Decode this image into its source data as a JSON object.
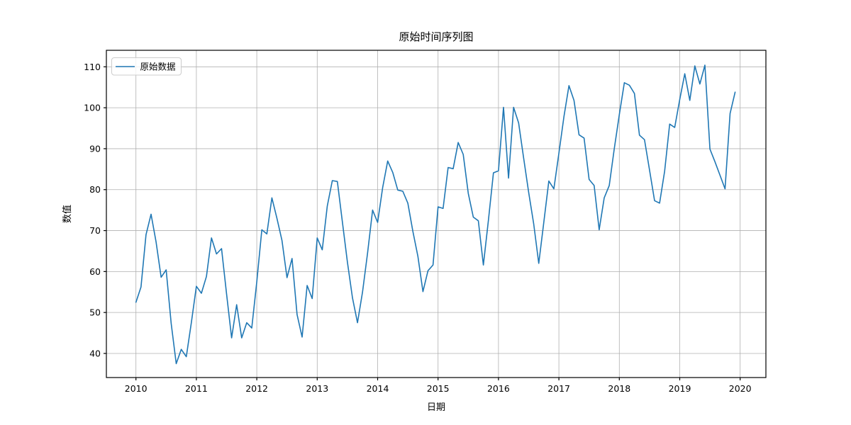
{
  "chart_data": {
    "type": "line",
    "title": "原始时间序列图",
    "xlabel": "日期",
    "ylabel": "数值",
    "x_start": "2010-01",
    "x_frequency": "monthly",
    "n_points": 120,
    "series": [
      {
        "name": "原始数据",
        "color": "#1f77b4",
        "values": [
          52.5,
          56.2,
          69.0,
          74.0,
          67.2,
          58.6,
          60.4,
          47.3,
          37.5,
          41.0,
          39.2,
          47.5,
          56.4,
          54.7,
          58.8,
          68.2,
          64.3,
          65.6,
          54.5,
          43.8,
          51.9,
          43.8,
          47.5,
          46.2,
          57.5,
          70.2,
          69.2,
          78.0,
          73.0,
          67.6,
          58.5,
          63.2,
          49.5,
          44.0,
          56.6,
          53.4,
          68.2,
          65.3,
          76.0,
          82.2,
          82.0,
          72.1,
          62.3,
          53.6,
          47.5,
          55.0,
          64.5,
          75.0,
          72.0,
          80.5,
          87.0,
          84.2,
          79.9,
          79.6,
          76.7,
          69.8,
          63.7,
          55.1,
          60.2,
          61.6,
          75.8,
          75.4,
          85.4,
          85.1,
          91.5,
          88.6,
          79.1,
          73.3,
          72.4,
          61.6,
          72.5,
          84.1,
          84.6,
          100.1,
          82.8,
          100.1,
          96.3,
          87.7,
          79.3,
          71.6,
          62.0,
          72.0,
          82.1,
          80.2,
          88.9,
          97.8,
          105.4,
          101.8,
          93.4,
          92.6,
          82.5,
          81.0,
          70.2,
          78.0,
          81.0,
          90.0,
          98.3,
          106.1,
          105.5,
          103.5,
          93.3,
          92.2,
          84.8,
          77.3,
          76.7,
          84.5,
          96.0,
          95.2,
          102.0,
          108.3,
          101.8,
          110.2,
          105.8,
          110.4,
          89.9,
          86.8,
          83.5,
          80.2,
          98.6,
          103.8
        ]
      }
    ],
    "x_ticks": [
      2010,
      2011,
      2012,
      2013,
      2014,
      2015,
      2016,
      2017,
      2018,
      2019,
      2020
    ],
    "y_ticks": [
      40,
      50,
      60,
      70,
      80,
      90,
      100,
      110
    ],
    "ylim": [
      34.1,
      114.0
    ],
    "xlim_years": [
      2009.51,
      2020.42
    ],
    "grid": true,
    "grid_color": "#b0b0b0",
    "axis_color": "#000000",
    "background": "#ffffff",
    "legend_position": "upper left"
  }
}
